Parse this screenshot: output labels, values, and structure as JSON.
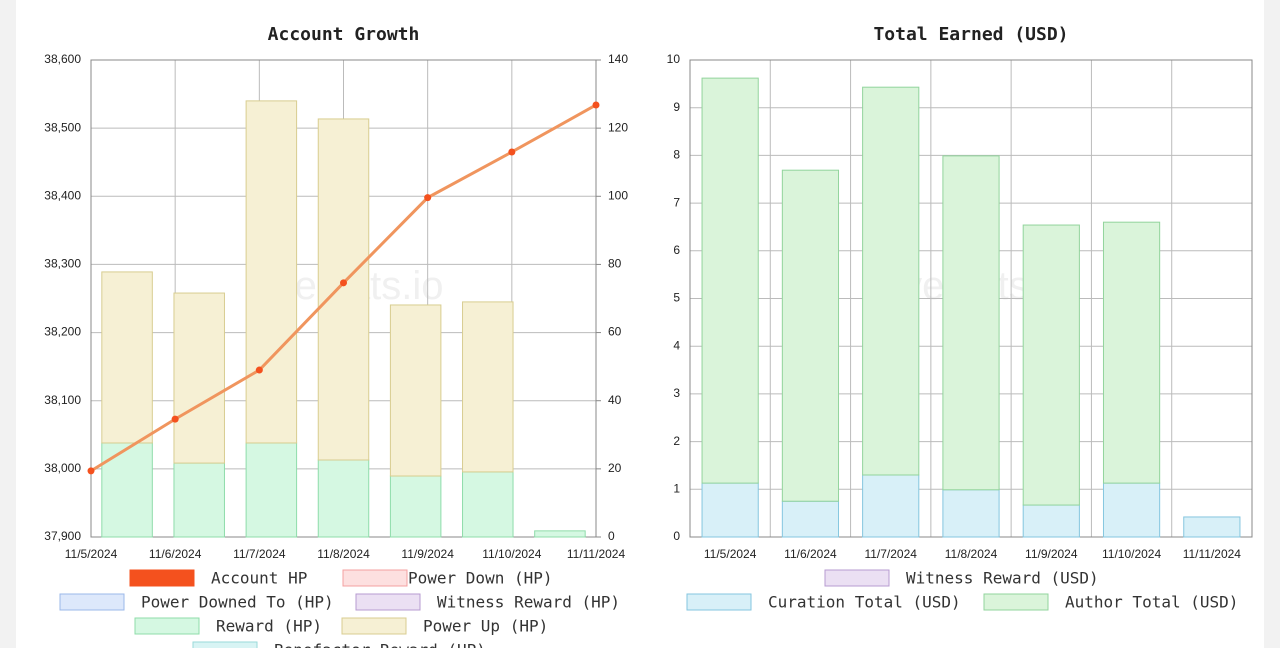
{
  "chart_data": [
    {
      "type": "bar_line",
      "title": "Account Growth",
      "watermark": "hivestats.io",
      "category_position": "edge",
      "categories": [
        "11/5/2024",
        "11/6/2024",
        "11/7/2024",
        "11/8/2024",
        "11/9/2024",
        "11/10/2024",
        "11/11/2024"
      ],
      "ylim": [
        37900,
        38600
      ],
      "yticks": [
        {
          "value": 37900,
          "label": "37,900"
        },
        {
          "value": 38000,
          "label": "38,000"
        },
        {
          "value": 38100,
          "label": "38,100"
        },
        {
          "value": 38200,
          "label": "38,200"
        },
        {
          "value": 38300,
          "label": "38,300"
        },
        {
          "value": 38400,
          "label": "38,400"
        },
        {
          "value": 38500,
          "label": "38,500"
        },
        {
          "value": 38600,
          "label": "38,600"
        }
      ],
      "y2lim": [
        0,
        140
      ],
      "y2ticks": [
        0,
        20,
        40,
        60,
        80,
        100,
        120,
        140
      ],
      "grid": true,
      "series": [
        {
          "name": "Account HP",
          "type": "line",
          "color": "#f4511e",
          "line_color": "#f0955e",
          "values": [
            37997,
            38073,
            38145,
            38273,
            38398,
            38465,
            38534
          ]
        },
        {
          "name": "Power Down (HP)",
          "color": "#fde0e0",
          "border": "#f4a0a0"
        },
        {
          "name": "Power Downed To (HP)",
          "color": "#dde8fb",
          "border": "#9bb8ea"
        },
        {
          "name": "Witness Reward (HP)",
          "color": "#ebe0f3",
          "border": "#b79bd0"
        },
        {
          "name": "Reward (HP)",
          "type": "bar",
          "axis": "y2",
          "color": "#d5f8e2",
          "border": "#8fdcaa",
          "values": [
            27.6,
            21.7,
            27.6,
            22.6,
            17.9,
            19.1,
            1.8
          ]
        },
        {
          "name": "Power Up (HP)",
          "type": "bar",
          "axis": "y2",
          "color": "#f6f0d4",
          "border": "#d8cd90",
          "values": [
            50.2,
            49.9,
            100.4,
            100.1,
            50.2,
            49.9,
            0
          ]
        },
        {
          "name": "Benefactor Reward (HP)",
          "color": "#d8f4f4",
          "border": "#9adada"
        }
      ]
    },
    {
      "type": "bar",
      "title": "Total Earned (USD)",
      "watermark": "hivestats.io",
      "category_position": "band",
      "categories": [
        "11/5/2024",
        "11/6/2024",
        "11/7/2024",
        "11/8/2024",
        "11/9/2024",
        "11/10/2024",
        "11/11/2024"
      ],
      "ylim": [
        0,
        10
      ],
      "yticks": [
        0,
        1,
        2,
        3,
        4,
        5,
        6,
        7,
        8,
        9,
        10
      ],
      "grid": true,
      "series": [
        {
          "name": "Witness Reward (USD)",
          "color": "#ebe0f3",
          "border": "#b79bd0"
        },
        {
          "name": "Curation Total (USD)",
          "type": "bar",
          "color": "#d8f0f8",
          "border": "#85c6df",
          "values": [
            1.13,
            0.75,
            1.3,
            0.99,
            0.67,
            1.13,
            0.42
          ]
        },
        {
          "name": "Author Total (USD)",
          "type": "bar",
          "color": "#daf4da",
          "border": "#92d49c",
          "values": [
            8.49,
            6.94,
            8.13,
            7.0,
            5.87,
            5.47,
            0
          ]
        }
      ]
    }
  ]
}
